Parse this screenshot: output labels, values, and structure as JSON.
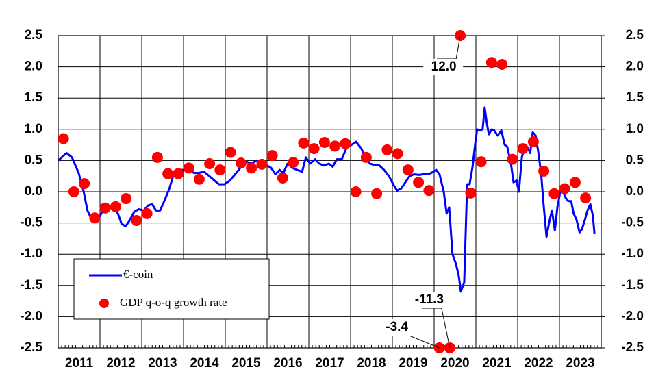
{
  "chart_data": {
    "type": "line",
    "xlim": [
      2011,
      2024
    ],
    "xticks": [
      2011,
      2012,
      2013,
      2014,
      2015,
      2016,
      2017,
      2018,
      2019,
      2020,
      2021,
      2022,
      2023
    ],
    "ylim": [
      -2.5,
      2.5
    ],
    "yticks": [
      2.5,
      {
        "value": 2.0,
        "label": "2.0"
      },
      1.5,
      {
        "value": 1.0,
        "label": "1.0"
      },
      0.5,
      {
        "value": 0.0,
        "label": "0.0"
      },
      -0.5,
      {
        "value": -1.0,
        "label": "-1.0"
      },
      -1.5,
      {
        "value": -2.0,
        "label": "-2.0"
      },
      -2.5
    ],
    "y2lim": [
      -2.5,
      2.5
    ],
    "y2ticks": [
      2.5,
      {
        "value": 2.0,
        "label": "2.0"
      },
      1.5,
      {
        "value": 1.0,
        "label": "1.0"
      },
      0.5,
      {
        "value": 0.0,
        "label": "0.0"
      },
      -0.5,
      {
        "value": -1.0,
        "label": "-1.0"
      },
      -1.5,
      {
        "value": -2.0,
        "label": "-2.0"
      },
      -2.5
    ],
    "grid": true,
    "legend": "bottom-left",
    "series": [
      {
        "name": "€-coin",
        "type": "line",
        "color": "#0000ff",
        "x": [
          2011.0,
          2011.2,
          2011.33,
          2011.49,
          2011.61,
          2011.7,
          2011.82,
          2011.95,
          2012.07,
          2012.2,
          2012.31,
          2012.43,
          2012.52,
          2012.62,
          2012.72,
          2012.82,
          2012.93,
          2013.05,
          2013.15,
          2013.25,
          2013.34,
          2013.44,
          2013.54,
          2013.66,
          2013.75,
          2013.87,
          2014.0,
          2014.11,
          2014.25,
          2014.36,
          2014.49,
          2014.62,
          2014.74,
          2014.85,
          2014.98,
          2015.11,
          2015.26,
          2015.38,
          2015.51,
          2015.62,
          2015.75,
          2015.89,
          2016.0,
          2016.1,
          2016.2,
          2016.3,
          2016.39,
          2016.49,
          2016.61,
          2016.72,
          2016.84,
          2016.93,
          2017.03,
          2017.15,
          2017.25,
          2017.36,
          2017.48,
          2017.57,
          2017.67,
          2017.79,
          2017.9,
          2018.02,
          2018.13,
          2018.25,
          2018.34,
          2018.46,
          2018.57,
          2018.69,
          2018.8,
          2018.92,
          2019.02,
          2019.11,
          2019.21,
          2019.31,
          2019.41,
          2019.52,
          2019.64,
          2019.74,
          2019.84,
          2019.93,
          2020.05,
          2020.13,
          2020.23,
          2020.3,
          2020.36,
          2020.44,
          2020.52,
          2020.59,
          2020.64,
          2020.72,
          2020.79,
          2020.85,
          2020.92,
          2020.98,
          2021.03,
          2021.1,
          2021.16,
          2021.21,
          2021.26,
          2021.31,
          2021.38,
          2021.44,
          2021.52,
          2021.61,
          2021.69,
          2021.75,
          2021.84,
          2021.9,
          2021.97,
          2022.03,
          2022.1,
          2022.16,
          2022.23,
          2022.3,
          2022.36,
          2022.43,
          2022.49,
          2022.56,
          2022.62,
          2022.69,
          2022.75,
          2022.82,
          2022.89,
          2022.95,
          2023.02,
          2023.08,
          2023.15,
          2023.21,
          2023.28,
          2023.34,
          2023.41,
          2023.48,
          2023.54,
          2023.61,
          2023.67,
          2023.74,
          2023.8,
          2023.84
        ],
        "values": [
          0.5,
          0.62,
          0.55,
          0.3,
          0.0,
          -0.3,
          -0.47,
          -0.45,
          -0.3,
          -0.22,
          -0.25,
          -0.35,
          -0.52,
          -0.55,
          -0.45,
          -0.32,
          -0.28,
          -0.3,
          -0.22,
          -0.2,
          -0.3,
          -0.3,
          -0.15,
          0.05,
          0.25,
          0.35,
          0.35,
          0.35,
          0.3,
          0.3,
          0.32,
          0.25,
          0.18,
          0.12,
          0.12,
          0.18,
          0.3,
          0.4,
          0.48,
          0.45,
          0.5,
          0.48,
          0.42,
          0.38,
          0.28,
          0.35,
          0.3,
          0.45,
          0.38,
          0.35,
          0.32,
          0.55,
          0.45,
          0.52,
          0.45,
          0.42,
          0.45,
          0.4,
          0.52,
          0.52,
          0.7,
          0.75,
          0.8,
          0.7,
          0.58,
          0.45,
          0.43,
          0.42,
          0.35,
          0.25,
          0.12,
          0.02,
          0.05,
          0.15,
          0.25,
          0.28,
          0.27,
          0.28,
          0.28,
          0.3,
          0.35,
          0.28,
          0.0,
          -0.35,
          -0.25,
          -1.0,
          -1.15,
          -1.35,
          -1.6,
          -1.45,
          0.12,
          0.12,
          0.4,
          0.75,
          1.0,
          0.98,
          1.0,
          1.35,
          1.1,
          0.92,
          1.0,
          0.98,
          0.9,
          0.98,
          0.75,
          0.72,
          0.45,
          0.15,
          0.18,
          0.0,
          0.55,
          0.7,
          0.72,
          0.62,
          0.95,
          0.9,
          0.65,
          0.3,
          -0.2,
          -0.72,
          -0.5,
          -0.3,
          -0.62,
          -0.25,
          0.0,
          0.0,
          -0.1,
          -0.15,
          -0.15,
          -0.35,
          -0.45,
          -0.65,
          -0.6,
          -0.45,
          -0.3,
          -0.2,
          -0.38,
          -0.68
        ]
      },
      {
        "name": "GDP q-o-q growth rate",
        "type": "scatter",
        "color": "#ff0000",
        "x": [
          2011.125,
          2011.375,
          2011.625,
          2011.875,
          2012.125,
          2012.375,
          2012.625,
          2012.875,
          2013.125,
          2013.375,
          2013.625,
          2013.875,
          2014.125,
          2014.375,
          2014.625,
          2014.875,
          2015.125,
          2015.375,
          2015.625,
          2015.875,
          2016.125,
          2016.375,
          2016.625,
          2016.875,
          2017.125,
          2017.375,
          2017.625,
          2017.875,
          2018.125,
          2018.375,
          2018.625,
          2018.875,
          2019.125,
          2019.375,
          2019.625,
          2019.875,
          2020.125,
          2020.375,
          2020.625,
          2020.875,
          2021.125,
          2021.375,
          2021.625,
          2021.875,
          2022.125,
          2022.375,
          2022.625,
          2022.875,
          2023.125,
          2023.375,
          2023.625
        ],
        "values": [
          0.85,
          0.0,
          0.13,
          -0.42,
          -0.26,
          -0.24,
          -0.11,
          -0.46,
          -0.35,
          0.55,
          0.29,
          0.29,
          0.38,
          0.2,
          0.45,
          0.35,
          0.63,
          0.46,
          0.38,
          0.44,
          0.58,
          0.22,
          0.47,
          0.78,
          0.69,
          0.79,
          0.73,
          0.77,
          0.0,
          0.55,
          -0.03,
          0.67,
          0.61,
          0.35,
          0.15,
          0.02,
          -3.4,
          -11.3,
          12.0,
          -0.02,
          0.48,
          2.07,
          2.04,
          0.52,
          0.69,
          0.8,
          0.33,
          -0.03,
          0.05,
          0.15,
          -0.1
        ],
        "value_labels": [
          null,
          null,
          null,
          null,
          null,
          null,
          null,
          null,
          null,
          null,
          null,
          null,
          null,
          null,
          null,
          null,
          null,
          null,
          null,
          null,
          null,
          null,
          null,
          null,
          null,
          null,
          null,
          null,
          null,
          null,
          null,
          null,
          null,
          null,
          null,
          null,
          "-3.4",
          "-11.3",
          "12.0",
          null,
          null,
          null,
          null,
          null,
          null,
          null,
          null,
          null,
          null,
          null,
          null
        ]
      }
    ]
  }
}
